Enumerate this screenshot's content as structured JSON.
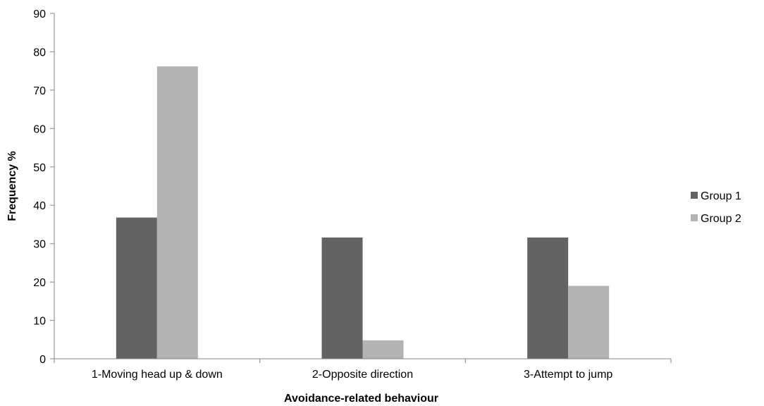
{
  "chart_data": {
    "type": "bar",
    "title": "",
    "xlabel": "Avoidance-related behaviour",
    "ylabel": "Frequency %",
    "ylim": [
      0,
      90
    ],
    "yticks": [
      0,
      10,
      20,
      30,
      40,
      50,
      60,
      70,
      80,
      90
    ],
    "categories": [
      "1-Moving head up & down",
      "2-Opposite direction",
      "3-Attempt to jump"
    ],
    "series": [
      {
        "name": "Group 1",
        "color": "#636363",
        "values": [
          36.8,
          31.6,
          31.6
        ]
      },
      {
        "name": "Group 2",
        "color": "#b3b3b3",
        "values": [
          76.2,
          4.8,
          19.0
        ]
      }
    ],
    "grid": false,
    "legend": "right"
  }
}
